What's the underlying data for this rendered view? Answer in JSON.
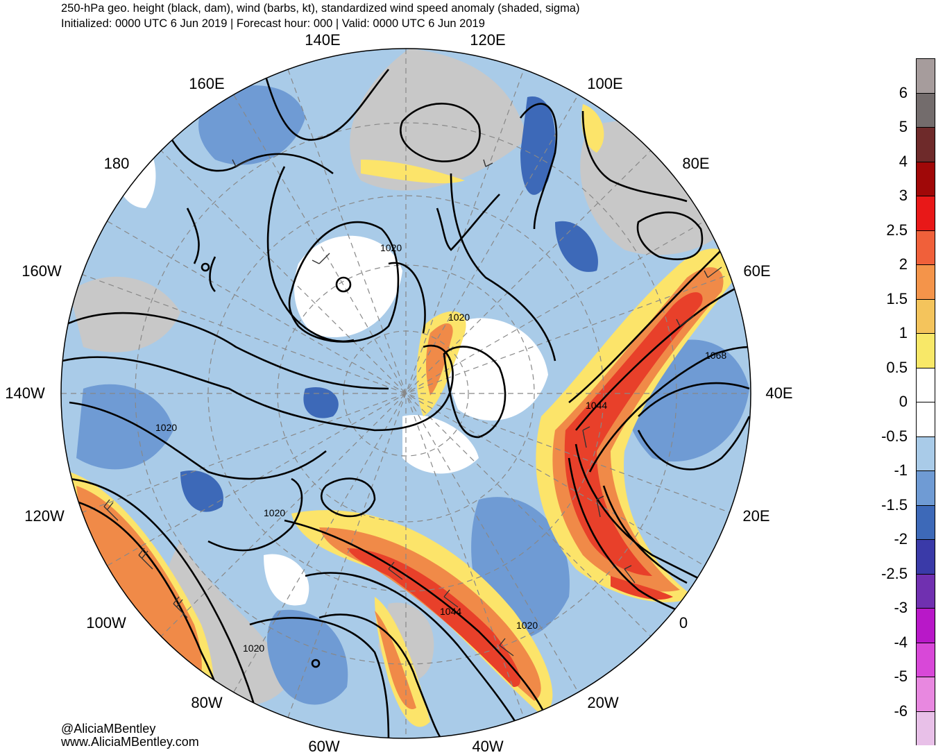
{
  "header": {
    "title": "250-hPa geo. height (black, dam), wind (barbs, kt), standardized wind speed anomaly (shaded, sigma)",
    "subtitle": "Initialized: 0000 UTC 6 Jun 2019 | Forecast hour: 000 | Valid: 0000 UTC 6 Jun 2019"
  },
  "map": {
    "projection": "north polar stereographic",
    "longitude_labels": [
      {
        "text": "140E"
      },
      {
        "text": "120E"
      },
      {
        "text": "160E"
      },
      {
        "text": "100E"
      },
      {
        "text": "180"
      },
      {
        "text": "80E"
      },
      {
        "text": "160W"
      },
      {
        "text": "60E"
      },
      {
        "text": "140W"
      },
      {
        "text": "40E"
      },
      {
        "text": "120W"
      },
      {
        "text": "20E"
      },
      {
        "text": "100W"
      },
      {
        "text": "0"
      },
      {
        "text": "80W"
      },
      {
        "text": "20W"
      },
      {
        "text": "60W"
      },
      {
        "text": "40W"
      }
    ],
    "contour_labels": [
      {
        "text": "1020"
      },
      {
        "text": "1020"
      },
      {
        "text": "1068"
      },
      {
        "text": "1044"
      },
      {
        "text": "1020"
      },
      {
        "text": "1020"
      },
      {
        "text": "1044"
      },
      {
        "text": "1020"
      },
      {
        "text": "1020"
      }
    ],
    "colors": {
      "land_gray": "#c8c8c8",
      "jet_red": "#e8402a",
      "jet_orange": "#f08a48",
      "yellow": "#fce46a",
      "light_blue": "#a9cbe8",
      "mid_blue": "#6f9bd4",
      "dark_blue": "#3d69b8",
      "contour": "#000000"
    }
  },
  "colorbar": {
    "labels": [
      "6",
      "5",
      "4",
      "3",
      "2.5",
      "2",
      "1.5",
      "1",
      "0.5",
      "0",
      "-0.5",
      "-1",
      "-1.5",
      "-2",
      "-2.5",
      "-3",
      "-4",
      "-5",
      "-6"
    ],
    "colors": [
      "#a69c9c",
      "#736c6c",
      "#6e2a2a",
      "#a00808",
      "#e81818",
      "#f0603a",
      "#f4944a",
      "#f4c45c",
      "#f8e868",
      "#ffffff",
      "#ffffff",
      "#a9cbe8",
      "#6f9bd4",
      "#3d69b8",
      "#3a3aa8",
      "#7030b0",
      "#b818c8",
      "#d848d8",
      "#e888e0",
      "#e8c0e8"
    ]
  },
  "credits": {
    "handle": "@AliciaMBentley",
    "website": "www.AliciaMBentley.com"
  }
}
